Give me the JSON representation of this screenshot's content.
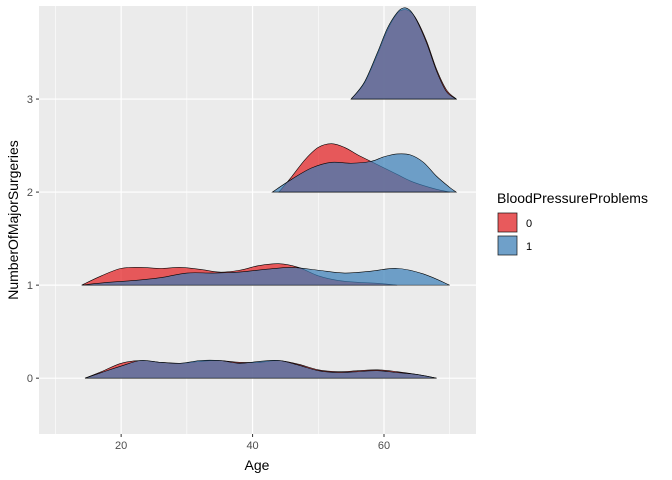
{
  "chart_data": {
    "type": "ridgeline",
    "xlabel": "Age",
    "ylabel": "NumberOfMajorSurgeries",
    "xlim": [
      7.5,
      74
    ],
    "ylim": [
      -0.6,
      4.0
    ],
    "x_ticks": [
      20,
      40,
      60
    ],
    "y_ticks": [
      0,
      1,
      2,
      3
    ],
    "x_tick_labels": [
      "20",
      "40",
      "60"
    ],
    "y_tick_labels": [
      "0",
      "1",
      "2",
      "3"
    ],
    "legend_title": "BloodPressureProblems",
    "legend_position": "right",
    "grid": true,
    "ridge_scale": 1.0,
    "series": [
      {
        "name": "0",
        "color": "#E41A1C",
        "ridges": [
          {
            "y": 0,
            "x": [
              14.5,
              17,
              20,
              23,
              26,
              29,
              32,
              35,
              38,
              41,
              44,
              47,
              50,
              53,
              56,
              59,
              62,
              65,
              68
            ],
            "h": [
              0.0,
              0.07,
              0.16,
              0.19,
              0.17,
              0.16,
              0.18,
              0.19,
              0.17,
              0.17,
              0.19,
              0.15,
              0.09,
              0.07,
              0.08,
              0.09,
              0.07,
              0.04,
              0.0
            ]
          },
          {
            "y": 1,
            "x": [
              14,
              17,
              20,
              23,
              26,
              29,
              32,
              35,
              38,
              41,
              44,
              47,
              50,
              53,
              56,
              59,
              62
            ],
            "h": [
              0.0,
              0.1,
              0.18,
              0.19,
              0.18,
              0.19,
              0.17,
              0.14,
              0.16,
              0.21,
              0.23,
              0.19,
              0.1,
              0.05,
              0.03,
              0.02,
              0.0
            ]
          },
          {
            "y": 2,
            "x": [
              44,
              46,
              48,
              50,
              52,
              54,
              56,
              58,
              60,
              62,
              64,
              66,
              68,
              70
            ],
            "h": [
              0.0,
              0.17,
              0.35,
              0.48,
              0.52,
              0.48,
              0.4,
              0.33,
              0.26,
              0.19,
              0.12,
              0.07,
              0.03,
              0.0
            ]
          },
          {
            "y": 3,
            "x": [
              55,
              57,
              59,
              60.5,
              62,
              63,
              64,
              65,
              66.5,
              68,
              69.5,
              71
            ],
            "h": [
              0.0,
              0.17,
              0.48,
              0.74,
              0.92,
              0.96,
              0.94,
              0.85,
              0.62,
              0.32,
              0.1,
              0.0
            ]
          }
        ]
      },
      {
        "name": "1",
        "color": "#377EB8",
        "ridges": [
          {
            "y": 0,
            "x": [
              14.5,
              17,
              20,
              23,
              26,
              29,
              32,
              35,
              38,
              41,
              44,
              47,
              50,
              53,
              56,
              59,
              62,
              65,
              68
            ],
            "h": [
              0.0,
              0.06,
              0.13,
              0.19,
              0.17,
              0.16,
              0.19,
              0.19,
              0.16,
              0.18,
              0.19,
              0.14,
              0.08,
              0.06,
              0.07,
              0.08,
              0.06,
              0.04,
              0.0
            ]
          },
          {
            "y": 1,
            "x": [
              14,
              18,
              22,
              26,
              30,
              34,
              38,
              42,
              46,
              50,
              54,
              58,
              62,
              66,
              70
            ],
            "h": [
              0.0,
              0.03,
              0.05,
              0.08,
              0.13,
              0.13,
              0.14,
              0.17,
              0.19,
              0.16,
              0.13,
              0.15,
              0.18,
              0.12,
              0.0
            ]
          },
          {
            "y": 2,
            "x": [
              43,
              46,
              49,
              52,
              55,
              58,
              60,
              62,
              64,
              66,
              68,
              70,
              71
            ],
            "h": [
              0.0,
              0.14,
              0.26,
              0.32,
              0.31,
              0.33,
              0.38,
              0.41,
              0.4,
              0.32,
              0.17,
              0.05,
              0.0
            ]
          },
          {
            "y": 3,
            "x": [
              55,
              57,
              59,
              60.5,
              62,
              63,
              64,
              65,
              66.5,
              68,
              69.5,
              71
            ],
            "h": [
              0.0,
              0.18,
              0.5,
              0.76,
              0.93,
              0.98,
              0.95,
              0.84,
              0.6,
              0.3,
              0.08,
              0.0
            ]
          }
        ]
      }
    ]
  }
}
